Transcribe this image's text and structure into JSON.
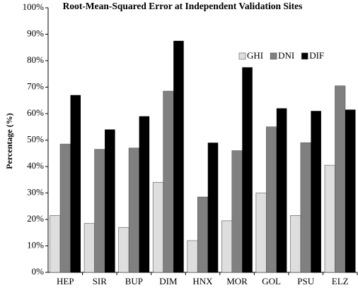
{
  "chart_data": {
    "type": "bar",
    "title": "Root-Mean-Squared Error at Independent Validation Sites",
    "y_label": "Percentage (%)",
    "categories": [
      "HEP",
      "SIR",
      "BUP",
      "DIM",
      "HNX",
      "MOR",
      "GOL",
      "PSU",
      "ELZ"
    ],
    "series": [
      {
        "name": "GHI",
        "color": "#dedede",
        "values": [
          21.5,
          18.5,
          17,
          34,
          12,
          19.5,
          30,
          21.5,
          40.5
        ]
      },
      {
        "name": "DNI",
        "color": "#808080",
        "values": [
          48.5,
          46.5,
          47,
          68.5,
          28.5,
          46,
          55,
          49,
          70.5
        ]
      },
      {
        "name": "DIF",
        "color": "#000000",
        "values": [
          67,
          54,
          59,
          87.5,
          49,
          77.5,
          62,
          61,
          61.5
        ]
      }
    ],
    "ylim": [
      0,
      100
    ],
    "yticks": [
      {
        "value": 0,
        "label": "0%"
      },
      {
        "value": 10,
        "label": "10%"
      },
      {
        "value": 20,
        "label": "20%"
      },
      {
        "value": 30,
        "label": "30%"
      },
      {
        "value": 40,
        "label": "40%"
      },
      {
        "value": 50,
        "label": "50%"
      },
      {
        "value": 60,
        "label": "60%"
      },
      {
        "value": 70,
        "label": "70%"
      },
      {
        "value": 80,
        "label": "80%"
      },
      {
        "value": 90,
        "label": "90%"
      },
      {
        "value": 100,
        "label": "100%"
      }
    ],
    "grid": false,
    "legend": "upper right"
  }
}
